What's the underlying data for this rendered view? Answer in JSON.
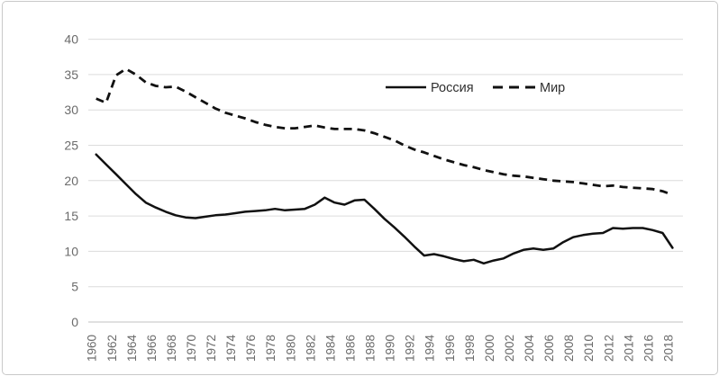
{
  "chart_data": {
    "type": "line",
    "title": "",
    "xlabel": "",
    "ylabel": "",
    "x_start": 1960,
    "x_end": 2018,
    "x_step": 1,
    "ylim": [
      0,
      40
    ],
    "yticks": [
      0,
      5,
      10,
      15,
      20,
      25,
      30,
      35,
      40
    ],
    "xtick_labels": [
      "1960",
      "1962",
      "1964",
      "1966",
      "1968",
      "1970",
      "1972",
      "1974",
      "1976",
      "1978",
      "1980",
      "1982",
      "1984",
      "1986",
      "1988",
      "1990",
      "1992",
      "1994",
      "1996",
      "1998",
      "2000",
      "2002",
      "2004",
      "2006",
      "2008",
      "2010",
      "2012",
      "2014",
      "2016",
      "2018"
    ],
    "grid": true,
    "legend_position": "inside-top-center",
    "series": [
      {
        "name": "Россия",
        "style": "solid",
        "values": [
          23.7,
          22.3,
          20.9,
          19.5,
          18.1,
          16.9,
          16.2,
          15.6,
          15.1,
          14.8,
          14.7,
          14.9,
          15.1,
          15.2,
          15.4,
          15.6,
          15.7,
          15.8,
          16.0,
          15.8,
          15.9,
          16.0,
          16.6,
          17.6,
          16.9,
          16.6,
          17.2,
          17.3,
          16.0,
          14.6,
          13.4,
          12.1,
          10.7,
          9.4,
          9.6,
          9.3,
          8.9,
          8.6,
          8.8,
          8.3,
          8.7,
          9.0,
          9.7,
          10.2,
          10.4,
          10.2,
          10.4,
          11.3,
          12.0,
          12.3,
          12.5,
          12.6,
          13.3,
          13.2,
          13.3,
          13.3,
          13.0,
          12.6,
          10.5
        ]
      },
      {
        "name": "Мир",
        "style": "dashed",
        "values": [
          31.6,
          31.0,
          34.9,
          35.8,
          35.0,
          33.9,
          33.4,
          33.2,
          33.3,
          32.6,
          31.8,
          31.0,
          30.2,
          29.6,
          29.2,
          28.8,
          28.3,
          27.9,
          27.6,
          27.4,
          27.4,
          27.6,
          27.8,
          27.5,
          27.3,
          27.3,
          27.3,
          27.1,
          26.7,
          26.2,
          25.7,
          25.0,
          24.4,
          24.0,
          23.5,
          23.0,
          22.6,
          22.2,
          21.9,
          21.5,
          21.2,
          20.9,
          20.7,
          20.6,
          20.4,
          20.2,
          20.0,
          19.9,
          19.8,
          19.6,
          19.4,
          19.2,
          19.3,
          19.1,
          19.0,
          18.9,
          18.8,
          18.5,
          18.0
        ]
      }
    ],
    "colors": {
      "line": "#111111",
      "grid": "#dcdcdc",
      "zero_line": "#c2c2c2",
      "tick_label": "#6b6b6b",
      "legend_text": "#2f2f2f",
      "background": "#ffffff",
      "frame_border": "#c9c9c9"
    }
  }
}
